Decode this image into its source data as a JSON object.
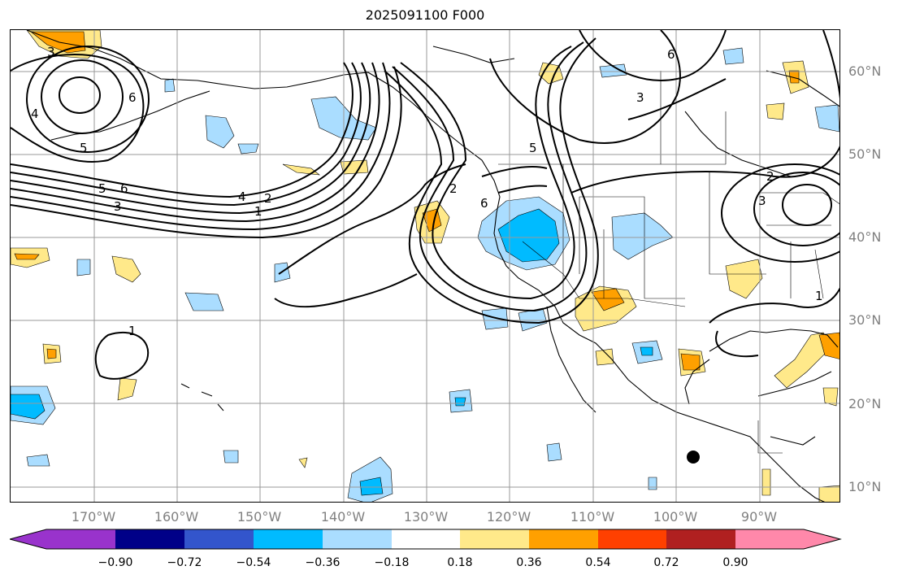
{
  "title": "2025091100 F000",
  "lat_labels": [
    "60°N",
    "50°N",
    "40°N",
    "30°N",
    "20°N",
    "10°N"
  ],
  "lon_labels": [
    "170°W",
    "160°W",
    "150°W",
    "140°W",
    "130°W",
    "120°W",
    "110°W",
    "100°W",
    "90°W"
  ],
  "colorbar": {
    "ticks": [
      "−0.90",
      "−0.72",
      "−0.54",
      "−0.36",
      "−0.18",
      "0.18",
      "0.36",
      "0.54",
      "0.72",
      "0.90"
    ],
    "colors": [
      "#9933cc",
      "#000088",
      "#3355cc",
      "#00bbff",
      "#aaddff",
      "#ffffff",
      "#ffe98a",
      "#ffa000",
      "#ff4000",
      "#b02020",
      "#ff88aa"
    ]
  },
  "contour_labels": [
    "3",
    "4",
    "5",
    "6",
    "5",
    "6",
    "3",
    "4",
    "2",
    "1",
    "2",
    "6",
    "5",
    "3",
    "6",
    "3",
    "2",
    "1",
    "1"
  ],
  "colors": {
    "pos_light": "#ffe98a",
    "pos_mid": "#ffa000",
    "neg_light": "#aaddff",
    "neg_mid": "#00bbff",
    "grid": "#999999",
    "axis_label": "#808080"
  }
}
